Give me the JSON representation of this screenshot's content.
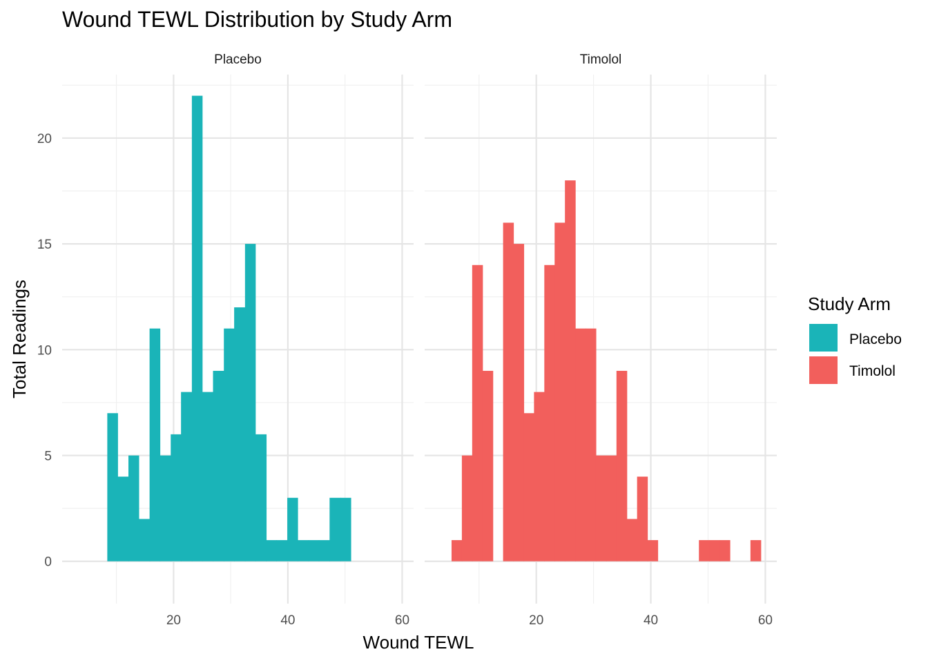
{
  "chart_data": {
    "type": "bar",
    "title": "Wound TEWL Distribution by Study Arm",
    "xlabel": "Wound TEWL",
    "ylabel": "Total Readings",
    "xlim": [
      0.5,
      62
    ],
    "ylim": [
      -2,
      23
    ],
    "x_ticks": [
      20,
      40,
      60
    ],
    "y_ticks": [
      0,
      5,
      10,
      15,
      20
    ],
    "grid": true,
    "legend": {
      "title": "Study Arm",
      "position": "right",
      "entries": [
        {
          "label": "Placebo",
          "color": "#1AB4B8"
        },
        {
          "label": "Timolol",
          "color": "#F25F5C"
        }
      ]
    },
    "panels": [
      {
        "name": "Placebo",
        "color": "#1AB4B8",
        "bins": [
          {
            "x0": 8.4,
            "x1": 10.2,
            "count": 7
          },
          {
            "x0": 10.2,
            "x1": 12.1,
            "count": 4
          },
          {
            "x0": 12.1,
            "x1": 13.9,
            "count": 5
          },
          {
            "x0": 13.9,
            "x1": 15.8,
            "count": 2
          },
          {
            "x0": 15.8,
            "x1": 17.6,
            "count": 11
          },
          {
            "x0": 17.6,
            "x1": 19.5,
            "count": 5
          },
          {
            "x0": 19.5,
            "x1": 21.3,
            "count": 6
          },
          {
            "x0": 21.3,
            "x1": 23.2,
            "count": 8
          },
          {
            "x0": 23.2,
            "x1": 25.0,
            "count": 22
          },
          {
            "x0": 25.0,
            "x1": 26.9,
            "count": 8
          },
          {
            "x0": 26.9,
            "x1": 28.8,
            "count": 9
          },
          {
            "x0": 28.8,
            "x1": 30.6,
            "count": 11
          },
          {
            "x0": 30.6,
            "x1": 32.5,
            "count": 12
          },
          {
            "x0": 32.5,
            "x1": 34.3,
            "count": 15
          },
          {
            "x0": 34.3,
            "x1": 36.2,
            "count": 6
          },
          {
            "x0": 36.2,
            "x1": 38.0,
            "count": 1
          },
          {
            "x0": 38.0,
            "x1": 39.9,
            "count": 1
          },
          {
            "x0": 39.9,
            "x1": 41.7,
            "count": 3
          },
          {
            "x0": 41.7,
            "x1": 43.6,
            "count": 1
          },
          {
            "x0": 43.6,
            "x1": 45.4,
            "count": 1
          },
          {
            "x0": 45.4,
            "x1": 47.3,
            "count": 1
          },
          {
            "x0": 47.3,
            "x1": 49.2,
            "count": 3
          },
          {
            "x0": 49.2,
            "x1": 51.0,
            "count": 3
          }
        ]
      },
      {
        "name": "Timolol",
        "color": "#F25F5C",
        "bins": [
          {
            "x0": 5.2,
            "x1": 7.0,
            "count": 1
          },
          {
            "x0": 7.0,
            "x1": 8.8,
            "count": 5
          },
          {
            "x0": 8.8,
            "x1": 10.6,
            "count": 14
          },
          {
            "x0": 10.6,
            "x1": 12.4,
            "count": 9
          },
          {
            "x0": 12.4,
            "x1": 14.2,
            "count": 0
          },
          {
            "x0": 14.2,
            "x1": 16.0,
            "count": 16
          },
          {
            "x0": 16.0,
            "x1": 17.8,
            "count": 15
          },
          {
            "x0": 17.8,
            "x1": 19.6,
            "count": 7
          },
          {
            "x0": 19.6,
            "x1": 21.4,
            "count": 8
          },
          {
            "x0": 21.4,
            "x1": 23.2,
            "count": 14
          },
          {
            "x0": 23.2,
            "x1": 25.0,
            "count": 16
          },
          {
            "x0": 25.0,
            "x1": 26.8,
            "count": 18
          },
          {
            "x0": 26.8,
            "x1": 28.6,
            "count": 11
          },
          {
            "x0": 28.6,
            "x1": 30.4,
            "count": 11
          },
          {
            "x0": 30.4,
            "x1": 32.2,
            "count": 5
          },
          {
            "x0": 32.2,
            "x1": 34.0,
            "count": 5
          },
          {
            "x0": 34.0,
            "x1": 35.8,
            "count": 9
          },
          {
            "x0": 35.8,
            "x1": 37.6,
            "count": 2
          },
          {
            "x0": 37.6,
            "x1": 39.4,
            "count": 4
          },
          {
            "x0": 39.4,
            "x1": 41.2,
            "count": 1
          },
          {
            "x0": 48.4,
            "x1": 50.2,
            "count": 1
          },
          {
            "x0": 50.2,
            "x1": 52.0,
            "count": 1
          },
          {
            "x0": 52.0,
            "x1": 53.8,
            "count": 1
          },
          {
            "x0": 57.4,
            "x1": 59.2,
            "count": 1
          }
        ]
      }
    ]
  }
}
